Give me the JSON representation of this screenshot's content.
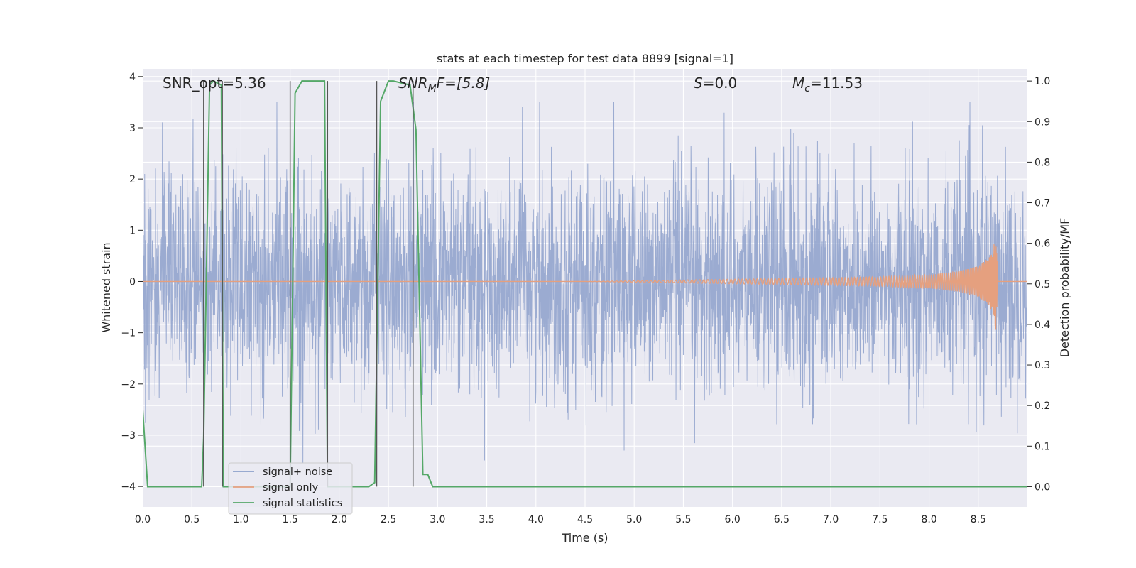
{
  "chart_data": {
    "type": "line",
    "title": "stats at each timestep for test data 8899 [signal=1]",
    "xlabel": "Time (s)",
    "ylabel": "Whitened strain",
    "y2label": "Detection probability/MF",
    "xlim": [
      0.0,
      9.0
    ],
    "ylim": [
      -4.4,
      4.15
    ],
    "y2lim": [
      -0.05,
      1.03
    ],
    "x_ticks": [
      "0.0",
      "0.5",
      "1.0",
      "1.5",
      "2.0",
      "2.5",
      "3.0",
      "3.5",
      "4.0",
      "4.5",
      "5.0",
      "5.5",
      "6.0",
      "6.5",
      "7.0",
      "7.5",
      "8.0",
      "8.5"
    ],
    "y_ticks": [
      "4",
      "3",
      "2",
      "1",
      "0",
      "−1",
      "−2",
      "−3",
      "−4"
    ],
    "y2_ticks": [
      "1.0",
      "0.9",
      "0.8",
      "0.7",
      "0.6",
      "0.5",
      "0.4",
      "0.3",
      "0.2",
      "0.1",
      "0.0"
    ],
    "grid": true,
    "legend_placement": "lower-left",
    "annotations": {
      "snr_opt": "SNR_opt=5.36",
      "snr_mf_main": "SNR",
      "snr_mf_sub": "M",
      "snr_mf_rest": "F=[5.8]",
      "s_main": "S",
      "s_rest": "=0.0",
      "mc_main": "M",
      "mc_sub": "c",
      "mc_rest": "=11.53"
    },
    "series": [
      {
        "name": "signal+ noise",
        "color": "#8da0cb",
        "noise_sigma": 1.05,
        "approx_range": [
          -4.0,
          3.5
        ],
        "x_range": [
          0.0,
          9.0
        ]
      },
      {
        "name": "signal only",
        "color": "#e5a07f",
        "envelope": {
          "x": [
            0.0,
            4.5,
            5.5,
            6.5,
            7.5,
            8.0,
            8.3,
            8.5,
            8.6,
            8.65,
            8.68,
            8.7,
            9.0
          ],
          "amplitude": [
            0.0,
            0.0,
            0.03,
            0.06,
            0.09,
            0.13,
            0.2,
            0.3,
            0.45,
            0.6,
            0.97,
            0.0,
            0.0
          ]
        }
      },
      {
        "name": "signal statistics",
        "color": "#55a868",
        "axis": "right",
        "x": [
          0.0,
          0.05,
          0.12,
          0.5,
          0.6,
          0.62,
          0.68,
          0.72,
          0.8,
          0.82,
          0.88,
          1.4,
          1.5,
          1.55,
          1.62,
          1.85,
          1.88,
          1.95,
          2.3,
          2.36,
          2.42,
          2.5,
          2.55,
          2.72,
          2.78,
          2.85,
          2.9,
          2.95,
          9.0
        ],
        "y": [
          0.19,
          0.0,
          0.0,
          0.0,
          0.0,
          0.12,
          0.99,
          1.0,
          0.99,
          0.0,
          0.0,
          0.0,
          0.0,
          0.97,
          1.0,
          1.0,
          0.0,
          0.0,
          0.0,
          0.01,
          0.95,
          1.0,
          1.0,
          0.99,
          0.88,
          0.03,
          0.03,
          0.0,
          0.0
        ]
      }
    ],
    "vertical_markers": [
      0.62,
      0.81,
      1.5,
      1.88,
      2.38,
      2.75
    ]
  }
}
